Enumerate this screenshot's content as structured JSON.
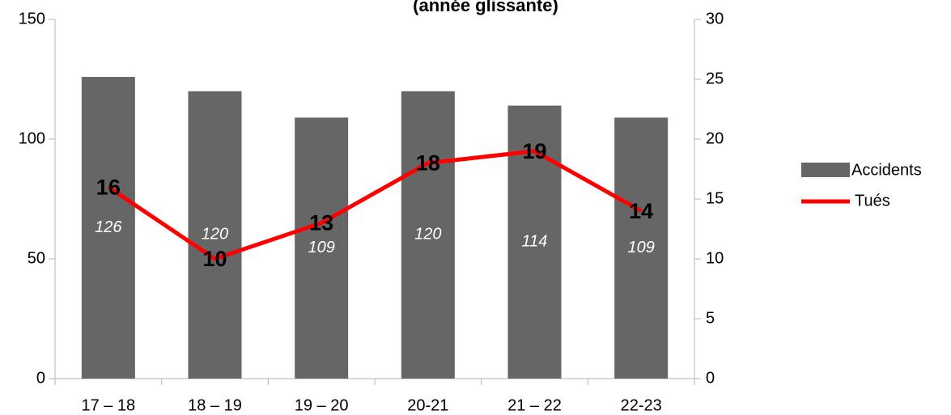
{
  "chart_data": {
    "type": "bar_line",
    "title": "(année glissante)",
    "categories": [
      "17 – 18",
      "18 – 19",
      "19 – 20",
      "20-21",
      "21 – 22",
      "22-23"
    ],
    "series": [
      {
        "name": "Accidents",
        "color": "#666666",
        "type": "bar",
        "values": [
          126,
          120,
          109,
          120,
          114,
          109
        ]
      },
      {
        "name": "Tués",
        "color": "#ff0000",
        "type": "line",
        "axis": "y2",
        "values": [
          16,
          10,
          13,
          18,
          19,
          14
        ]
      }
    ],
    "ylim": [
      0,
      150
    ],
    "yticks": [
      0,
      50,
      100,
      150
    ],
    "y2lim": [
      0,
      30
    ],
    "y2ticks": [
      0,
      5,
      10,
      15,
      20,
      25,
      30
    ],
    "legend": "right"
  }
}
